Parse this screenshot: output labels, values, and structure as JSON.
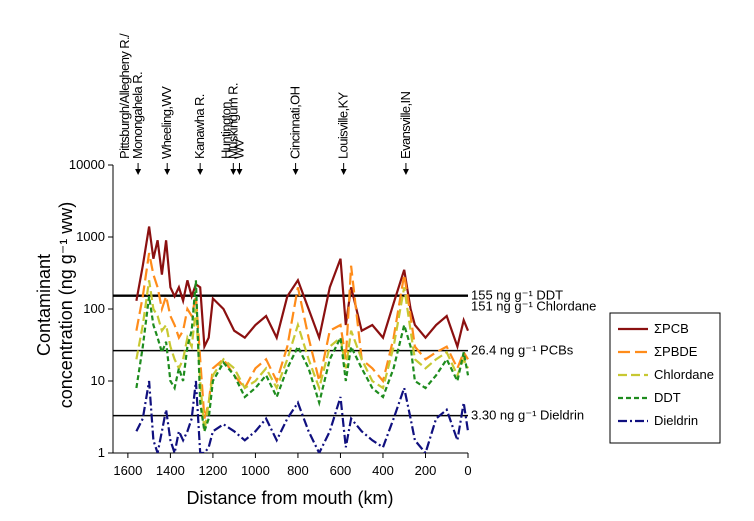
{
  "chart_data": {
    "type": "line",
    "log_y": true,
    "x_label": "Distance from mouth (km)",
    "y_label": [
      "Contaminant",
      "concentration (ng g⁻¹ ww)"
    ],
    "xlim": [
      1670,
      0
    ],
    "xticks": [
      1600,
      1400,
      1200,
      1000,
      800,
      600,
      400,
      200,
      0
    ],
    "ylim": [
      1,
      10000
    ],
    "yticks": [
      1,
      10,
      100,
      1000,
      10000
    ],
    "x": [
      1560,
      1530,
      1500,
      1480,
      1460,
      1440,
      1420,
      1400,
      1380,
      1360,
      1340,
      1320,
      1300,
      1280,
      1260,
      1240,
      1220,
      1200,
      1150,
      1100,
      1050,
      1000,
      950,
      900,
      850,
      800,
      750,
      700,
      650,
      600,
      575,
      550,
      500,
      450,
      400,
      350,
      300,
      270,
      250,
      200,
      150,
      100,
      50,
      20,
      0
    ],
    "series": [
      {
        "name": "ΣPCB",
        "color": "#8b1010",
        "dash": "",
        "values": [
          130,
          400,
          1400,
          500,
          900,
          300,
          900,
          200,
          150,
          200,
          130,
          250,
          150,
          220,
          200,
          30,
          40,
          140,
          100,
          50,
          40,
          60,
          80,
          40,
          150,
          250,
          100,
          40,
          200,
          500,
          60,
          200,
          50,
          60,
          40,
          120,
          350,
          100,
          60,
          40,
          60,
          80,
          30,
          70,
          50
        ]
      },
      {
        "name": "ΣPBDE",
        "color": "#ff8c1a",
        "dash": "12,5",
        "values": [
          50,
          150,
          600,
          300,
          200,
          100,
          150,
          80,
          60,
          40,
          50,
          100,
          80,
          150,
          20,
          3,
          5,
          15,
          20,
          12,
          8,
          15,
          20,
          10,
          30,
          200,
          40,
          10,
          50,
          60,
          20,
          400,
          20,
          15,
          10,
          40,
          300,
          80,
          30,
          20,
          25,
          30,
          15,
          25,
          20
        ]
      },
      {
        "name": "Chlordane",
        "color": "#c8c832",
        "dash": "9,4",
        "values": [
          20,
          60,
          250,
          100,
          80,
          50,
          60,
          30,
          20,
          15,
          20,
          40,
          30,
          100,
          10,
          2,
          5,
          12,
          20,
          15,
          8,
          10,
          15,
          8,
          20,
          60,
          20,
          8,
          30,
          40,
          15,
          50,
          20,
          10,
          8,
          30,
          200,
          50,
          20,
          15,
          20,
          25,
          12,
          20,
          15
        ]
      },
      {
        "name": "DDT",
        "color": "#1e8c1e",
        "dash": "5,3",
        "values": [
          8,
          30,
          150,
          60,
          40,
          25,
          35,
          10,
          8,
          15,
          10,
          30,
          50,
          250,
          5,
          2,
          3,
          10,
          18,
          12,
          6,
          8,
          12,
          6,
          15,
          30,
          15,
          5,
          20,
          40,
          10,
          30,
          15,
          8,
          6,
          15,
          60,
          30,
          10,
          8,
          12,
          20,
          10,
          25,
          12
        ]
      },
      {
        "name": "Dieldrin",
        "color": "#10107f",
        "dash": "9,3,2,3",
        "values": [
          2,
          3,
          10,
          1.5,
          1,
          2,
          4,
          1.5,
          1,
          2,
          1.5,
          2,
          3,
          10,
          1,
          1,
          1.2,
          2,
          2.5,
          2,
          1.5,
          2,
          3,
          1.5,
          3,
          5,
          2,
          1,
          2,
          6,
          1.2,
          3,
          2,
          1.5,
          1.2,
          3,
          8,
          3,
          1.5,
          1,
          3,
          4,
          1.5,
          5,
          2
        ]
      }
    ],
    "reference_lines": [
      {
        "value": 155,
        "label": "155 ng g⁻¹ DDT"
      },
      {
        "value": 151,
        "label": "151 ng g⁻¹ Chlordane"
      },
      {
        "value": 26.4,
        "label": "26.4 ng g⁻¹ PCBs"
      },
      {
        "value": 3.3,
        "label": "3.30 ng g⁻¹ Dieldrin"
      }
    ],
    "annotations": [
      {
        "lines": [
          "Pittsburgh/Allegheny R./",
          "Monongahela R."
        ],
        "x": 1552
      },
      {
        "lines": [
          "Wheeling,WV"
        ],
        "x": 1415
      },
      {
        "lines": [
          "Kanawha R."
        ],
        "x": 1260
      },
      {
        "lines": [
          "Muskingum R."
        ],
        "x": 1104
      },
      {
        "lines": [
          "Huntington,",
          "WV"
        ],
        "x": 1075
      },
      {
        "lines": [
          "Cincinnati,OH"
        ],
        "x": 811
      },
      {
        "lines": [
          "Louisville,KY"
        ],
        "x": 585
      },
      {
        "lines": [
          "Evansville,IN"
        ],
        "x": 292
      }
    ],
    "legend_position": "right"
  }
}
